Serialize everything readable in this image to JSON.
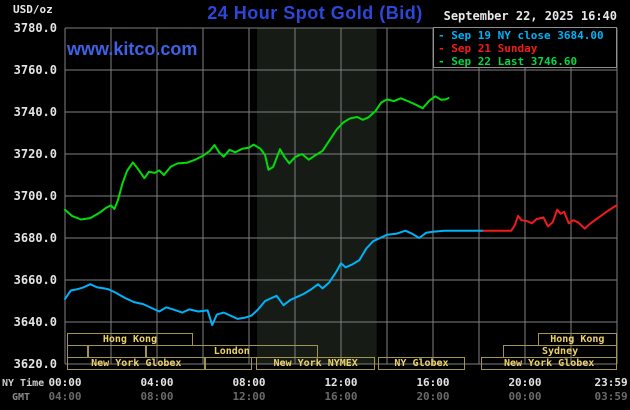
{
  "header": {
    "unit": "USD/oz",
    "title": "24 Hour Spot Gold (Bid)",
    "datetime": "September 22, 2025 16:40",
    "watermark": "www.kitco.com"
  },
  "legend": {
    "items": [
      {
        "dash": "-",
        "label": "Sep 19 NY close 3684.00",
        "color": "#00b2f8"
      },
      {
        "dash": "-",
        "label": "Sep 21 Sunday",
        "color": "#f21b1b"
      },
      {
        "dash": "-",
        "label": "Sep 22 Last 3746.60",
        "color": "#00d944"
      }
    ]
  },
  "chart_data": {
    "type": "line",
    "title": "24 Hour Spot Gold (Bid)",
    "ylabel": "USD/oz",
    "y_axis": {
      "min": 3620,
      "max": 3780,
      "tick_step": 20
    },
    "y_ticks": [
      {
        "label": "3780.0",
        "value": 3780
      },
      {
        "label": "3760.0",
        "value": 3760
      },
      {
        "label": "3740.0",
        "value": 3740
      },
      {
        "label": "3720.0",
        "value": 3720
      },
      {
        "label": "3700.0",
        "value": 3700
      },
      {
        "label": "3680.0",
        "value": 3680
      },
      {
        "label": "3660.0",
        "value": 3660
      },
      {
        "label": "3640.0",
        "value": 3640
      },
      {
        "label": "3620.0",
        "value": 3620
      }
    ],
    "x_axis": {
      "range_hours": [
        0,
        24
      ],
      "grid_step_hours": 2,
      "row_label_ny": "NY Time",
      "row_label_gmt": "GMT"
    },
    "x_ticks": [
      {
        "ny": "00:00",
        "gmt": "04:00",
        "hour": 0
      },
      {
        "ny": "04:00",
        "gmt": "08:00",
        "hour": 4
      },
      {
        "ny": "08:00",
        "gmt": "12:00",
        "hour": 8
      },
      {
        "ny": "12:00",
        "gmt": "16:00",
        "hour": 12
      },
      {
        "ny": "16:00",
        "gmt": "20:00",
        "hour": 16
      },
      {
        "ny": "20:00",
        "gmt": "00:00",
        "hour": 20
      },
      {
        "ny": "23:59",
        "gmt": "03:59",
        "hour": 23.74
      }
    ],
    "grid_color": "#7f7f7f",
    "nymex_band_hours": [
      8.35,
      13.55
    ],
    "band_color": "#161c15",
    "sessions": [
      {
        "label": "Hong Kong",
        "row": 1,
        "h1": 0.1,
        "h2": 5.55
      },
      {
        "label": "Hong Kong",
        "row": 1,
        "h1": 20.55,
        "h2": 24
      },
      {
        "label": "",
        "row": 2,
        "h1": 0.1,
        "h2": 1.0
      },
      {
        "label": "",
        "row": 2,
        "h1": 1.0,
        "h2": 3.5
      },
      {
        "label": "London",
        "row": 2,
        "h1": 3.5,
        "h2": 11.0
      },
      {
        "label": "Sydney",
        "row": 2,
        "h1": 19.05,
        "h2": 24
      },
      {
        "label": "New York Globex",
        "row": 3,
        "h1": 0.1,
        "h2": 6.1
      },
      {
        "label": "",
        "row": 3,
        "h1": 6.1,
        "h2": 8.15
      },
      {
        "label": "New York NYMEX",
        "row": 3,
        "h1": 8.3,
        "h2": 13.5
      },
      {
        "label": "NY Globex",
        "row": 3,
        "h1": 13.6,
        "h2": 17.4
      },
      {
        "label": "New York Globex",
        "row": 3,
        "h1": 18.1,
        "h2": 24
      }
    ],
    "series": [
      {
        "name": "Sep 19 NY close 3684.00",
        "color": "#00b2f8",
        "points": [
          [
            0,
            3651
          ],
          [
            0.25,
            3655
          ],
          [
            0.5,
            3655.5
          ],
          [
            0.8,
            3656.5
          ],
          [
            1.1,
            3658
          ],
          [
            1.4,
            3656.5
          ],
          [
            1.7,
            3656
          ],
          [
            1.9,
            3655.5
          ],
          [
            2.2,
            3654
          ],
          [
            2.6,
            3651.5
          ],
          [
            3.0,
            3649.5
          ],
          [
            3.4,
            3648.5
          ],
          [
            3.8,
            3646.5
          ],
          [
            4.1,
            3645
          ],
          [
            4.4,
            3647
          ],
          [
            4.7,
            3646
          ],
          [
            5.1,
            3644.5
          ],
          [
            5.4,
            3646
          ],
          [
            5.8,
            3645
          ],
          [
            6.2,
            3645.5
          ],
          [
            6.4,
            3638.5
          ],
          [
            6.6,
            3643.5
          ],
          [
            6.9,
            3644.5
          ],
          [
            7.2,
            3643
          ],
          [
            7.5,
            3641.5
          ],
          [
            7.8,
            3642
          ],
          [
            8.1,
            3643
          ],
          [
            8.4,
            3646
          ],
          [
            8.7,
            3650
          ],
          [
            9.0,
            3651.5
          ],
          [
            9.2,
            3652.5
          ],
          [
            9.5,
            3648
          ],
          [
            9.8,
            3650.5
          ],
          [
            10.1,
            3652
          ],
          [
            10.4,
            3653.5
          ],
          [
            10.7,
            3655.5
          ],
          [
            11.0,
            3658
          ],
          [
            11.2,
            3656
          ],
          [
            11.5,
            3659
          ],
          [
            11.8,
            3664
          ],
          [
            12.0,
            3668
          ],
          [
            12.2,
            3666
          ],
          [
            12.5,
            3667.5
          ],
          [
            12.8,
            3669.5
          ],
          [
            13.1,
            3675
          ],
          [
            13.4,
            3678.5
          ],
          [
            13.7,
            3680
          ],
          [
            14.0,
            3681.5
          ],
          [
            14.4,
            3682
          ],
          [
            14.8,
            3683.5
          ],
          [
            15.1,
            3682
          ],
          [
            15.4,
            3680
          ],
          [
            15.7,
            3682.5
          ],
          [
            16.0,
            3683
          ],
          [
            16.5,
            3683.5
          ],
          [
            17.0,
            3683.5
          ],
          [
            17.6,
            3683.5
          ],
          [
            18.2,
            3683.5
          ]
        ]
      },
      {
        "name": "Sep 21 Sunday",
        "color": "#f21b1b",
        "points": [
          [
            18.2,
            3683.5
          ],
          [
            19.4,
            3683.5
          ],
          [
            19.55,
            3686
          ],
          [
            19.7,
            3690.5
          ],
          [
            19.85,
            3688.5
          ],
          [
            20.1,
            3688
          ],
          [
            20.3,
            3687
          ],
          [
            20.5,
            3689
          ],
          [
            20.8,
            3689.8
          ],
          [
            21.0,
            3685.5
          ],
          [
            21.2,
            3687.5
          ],
          [
            21.4,
            3693.5
          ],
          [
            21.55,
            3691.5
          ],
          [
            21.7,
            3692.5
          ],
          [
            21.9,
            3687
          ],
          [
            22.1,
            3688.5
          ],
          [
            22.3,
            3687.5
          ],
          [
            22.6,
            3684.5
          ],
          [
            22.8,
            3686.5
          ],
          [
            23.1,
            3689
          ],
          [
            23.3,
            3690.5
          ],
          [
            23.6,
            3692.9
          ],
          [
            23.98,
            3695.5
          ]
        ]
      },
      {
        "name": "Sep 22 Last 3746.60",
        "color": "#00dd08",
        "points": [
          [
            0,
            3693.5
          ],
          [
            0.3,
            3690.5
          ],
          [
            0.7,
            3688.8
          ],
          [
            1.1,
            3689.5
          ],
          [
            1.5,
            3692
          ],
          [
            1.8,
            3694.5
          ],
          [
            2.0,
            3695.5
          ],
          [
            2.15,
            3693.8
          ],
          [
            2.3,
            3698
          ],
          [
            2.5,
            3706
          ],
          [
            2.7,
            3712
          ],
          [
            2.95,
            3716
          ],
          [
            3.2,
            3712.5
          ],
          [
            3.45,
            3708.5
          ],
          [
            3.65,
            3711.5
          ],
          [
            3.9,
            3711
          ],
          [
            4.1,
            3712.2
          ],
          [
            4.3,
            3710
          ],
          [
            4.6,
            3714
          ],
          [
            4.9,
            3715.5
          ],
          [
            5.3,
            3715.8
          ],
          [
            5.7,
            3717.5
          ],
          [
            6.0,
            3719.2
          ],
          [
            6.3,
            3721.5
          ],
          [
            6.5,
            3724.3
          ],
          [
            6.7,
            3720.8
          ],
          [
            6.9,
            3718.7
          ],
          [
            7.15,
            3722
          ],
          [
            7.4,
            3720.8
          ],
          [
            7.7,
            3722.5
          ],
          [
            8.0,
            3723
          ],
          [
            8.2,
            3724.5
          ],
          [
            8.5,
            3722.5
          ],
          [
            8.7,
            3719.5
          ],
          [
            8.85,
            3712.5
          ],
          [
            9.05,
            3713.8
          ],
          [
            9.35,
            3722.3
          ],
          [
            9.55,
            3718.5
          ],
          [
            9.75,
            3715.5
          ],
          [
            10.0,
            3718.5
          ],
          [
            10.3,
            3720
          ],
          [
            10.6,
            3717.3
          ],
          [
            10.9,
            3719.5
          ],
          [
            11.2,
            3721.5
          ],
          [
            11.5,
            3726.5
          ],
          [
            11.8,
            3731.5
          ],
          [
            12.1,
            3735
          ],
          [
            12.4,
            3737
          ],
          [
            12.7,
            3737.6
          ],
          [
            12.95,
            3736.3
          ],
          [
            13.2,
            3737.5
          ],
          [
            13.5,
            3740.5
          ],
          [
            13.75,
            3744.5
          ],
          [
            14.0,
            3746
          ],
          [
            14.3,
            3745.2
          ],
          [
            14.6,
            3746.5
          ],
          [
            14.95,
            3745
          ],
          [
            15.25,
            3743.5
          ],
          [
            15.55,
            3741.8
          ],
          [
            15.85,
            3745.5
          ],
          [
            16.1,
            3747.5
          ],
          [
            16.35,
            3745.8
          ],
          [
            16.55,
            3746
          ],
          [
            16.67,
            3746.6
          ]
        ]
      }
    ]
  }
}
